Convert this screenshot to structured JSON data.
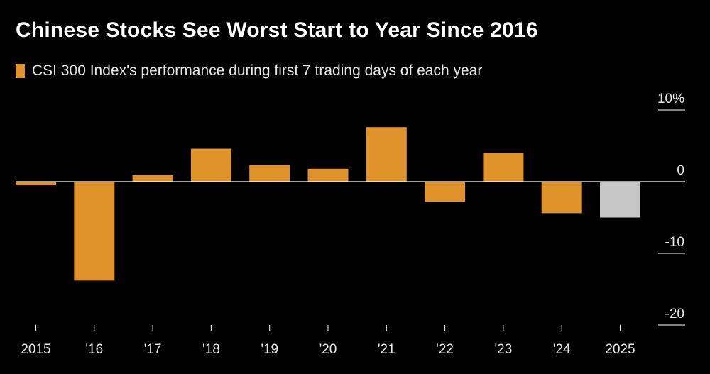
{
  "title": "Chinese Stocks See Worst Start to Year Since 2016",
  "legend": {
    "label": "CSI 300 Index's performance during first 7 trading days of each year"
  },
  "colors": {
    "background": "#000000",
    "bar": "#E0922B",
    "highlight": "#C6C6C6",
    "zero_line": "#FFFFFF",
    "grid": "#FFFFFF"
  },
  "chart_data": {
    "type": "bar",
    "title": "Chinese Stocks See Worst Start to Year Since 2016",
    "xlabel": "",
    "ylabel": "",
    "categories": [
      "2015",
      "'16",
      "'17",
      "'18",
      "'19",
      "'20",
      "'21",
      "'22",
      "'23",
      "'24",
      "2025"
    ],
    "series": [
      {
        "name": "CSI 300 Index's performance during first 7 trading days of each year",
        "values": [
          -0.5,
          -13.8,
          0.9,
          4.6,
          2.3,
          1.8,
          7.6,
          -2.8,
          4.0,
          -4.4,
          -5.0
        ]
      }
    ],
    "highlight_category": "2025",
    "ylim": [
      -20,
      10
    ],
    "yticks": [
      10,
      0,
      -10,
      -20
    ],
    "ytick_labels": [
      "10%",
      "0",
      "-10",
      "-20"
    ],
    "grid": false,
    "legend_position": "top-left"
  }
}
